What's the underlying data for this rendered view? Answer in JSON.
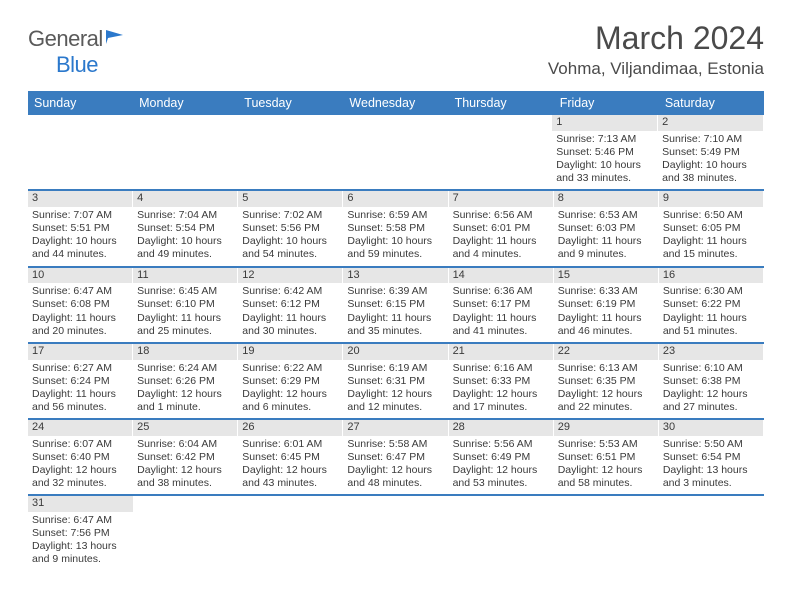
{
  "logo": {
    "text1": "General",
    "text2": "Blue",
    "color1": "#5a5a5a",
    "color2": "#2b78cc"
  },
  "title": "March 2024",
  "location": "Vohma, Viljandimaa, Estonia",
  "colors": {
    "header_bg": "#3a7cbf",
    "header_text": "#ffffff",
    "daynum_bg": "#e6e6e6",
    "week_border": "#3a7cbf",
    "text": "#3a3a3a"
  },
  "fonts": {
    "title_size": 32,
    "location_size": 17,
    "dayheader_size": 12.5,
    "cell_size": 10.5
  },
  "dayheaders": [
    "Sunday",
    "Monday",
    "Tuesday",
    "Wednesday",
    "Thursday",
    "Friday",
    "Saturday"
  ],
  "weeks": [
    [
      null,
      null,
      null,
      null,
      null,
      {
        "n": "1",
        "sunrise": "Sunrise: 7:13 AM",
        "sunset": "Sunset: 5:46 PM",
        "daylight": "Daylight: 10 hours and 33 minutes."
      },
      {
        "n": "2",
        "sunrise": "Sunrise: 7:10 AM",
        "sunset": "Sunset: 5:49 PM",
        "daylight": "Daylight: 10 hours and 38 minutes."
      }
    ],
    [
      {
        "n": "3",
        "sunrise": "Sunrise: 7:07 AM",
        "sunset": "Sunset: 5:51 PM",
        "daylight": "Daylight: 10 hours and 44 minutes."
      },
      {
        "n": "4",
        "sunrise": "Sunrise: 7:04 AM",
        "sunset": "Sunset: 5:54 PM",
        "daylight": "Daylight: 10 hours and 49 minutes."
      },
      {
        "n": "5",
        "sunrise": "Sunrise: 7:02 AM",
        "sunset": "Sunset: 5:56 PM",
        "daylight": "Daylight: 10 hours and 54 minutes."
      },
      {
        "n": "6",
        "sunrise": "Sunrise: 6:59 AM",
        "sunset": "Sunset: 5:58 PM",
        "daylight": "Daylight: 10 hours and 59 minutes."
      },
      {
        "n": "7",
        "sunrise": "Sunrise: 6:56 AM",
        "sunset": "Sunset: 6:01 PM",
        "daylight": "Daylight: 11 hours and 4 minutes."
      },
      {
        "n": "8",
        "sunrise": "Sunrise: 6:53 AM",
        "sunset": "Sunset: 6:03 PM",
        "daylight": "Daylight: 11 hours and 9 minutes."
      },
      {
        "n": "9",
        "sunrise": "Sunrise: 6:50 AM",
        "sunset": "Sunset: 6:05 PM",
        "daylight": "Daylight: 11 hours and 15 minutes."
      }
    ],
    [
      {
        "n": "10",
        "sunrise": "Sunrise: 6:47 AM",
        "sunset": "Sunset: 6:08 PM",
        "daylight": "Daylight: 11 hours and 20 minutes."
      },
      {
        "n": "11",
        "sunrise": "Sunrise: 6:45 AM",
        "sunset": "Sunset: 6:10 PM",
        "daylight": "Daylight: 11 hours and 25 minutes."
      },
      {
        "n": "12",
        "sunrise": "Sunrise: 6:42 AM",
        "sunset": "Sunset: 6:12 PM",
        "daylight": "Daylight: 11 hours and 30 minutes."
      },
      {
        "n": "13",
        "sunrise": "Sunrise: 6:39 AM",
        "sunset": "Sunset: 6:15 PM",
        "daylight": "Daylight: 11 hours and 35 minutes."
      },
      {
        "n": "14",
        "sunrise": "Sunrise: 6:36 AM",
        "sunset": "Sunset: 6:17 PM",
        "daylight": "Daylight: 11 hours and 41 minutes."
      },
      {
        "n": "15",
        "sunrise": "Sunrise: 6:33 AM",
        "sunset": "Sunset: 6:19 PM",
        "daylight": "Daylight: 11 hours and 46 minutes."
      },
      {
        "n": "16",
        "sunrise": "Sunrise: 6:30 AM",
        "sunset": "Sunset: 6:22 PM",
        "daylight": "Daylight: 11 hours and 51 minutes."
      }
    ],
    [
      {
        "n": "17",
        "sunrise": "Sunrise: 6:27 AM",
        "sunset": "Sunset: 6:24 PM",
        "daylight": "Daylight: 11 hours and 56 minutes."
      },
      {
        "n": "18",
        "sunrise": "Sunrise: 6:24 AM",
        "sunset": "Sunset: 6:26 PM",
        "daylight": "Daylight: 12 hours and 1 minute."
      },
      {
        "n": "19",
        "sunrise": "Sunrise: 6:22 AM",
        "sunset": "Sunset: 6:29 PM",
        "daylight": "Daylight: 12 hours and 6 minutes."
      },
      {
        "n": "20",
        "sunrise": "Sunrise: 6:19 AM",
        "sunset": "Sunset: 6:31 PM",
        "daylight": "Daylight: 12 hours and 12 minutes."
      },
      {
        "n": "21",
        "sunrise": "Sunrise: 6:16 AM",
        "sunset": "Sunset: 6:33 PM",
        "daylight": "Daylight: 12 hours and 17 minutes."
      },
      {
        "n": "22",
        "sunrise": "Sunrise: 6:13 AM",
        "sunset": "Sunset: 6:35 PM",
        "daylight": "Daylight: 12 hours and 22 minutes."
      },
      {
        "n": "23",
        "sunrise": "Sunrise: 6:10 AM",
        "sunset": "Sunset: 6:38 PM",
        "daylight": "Daylight: 12 hours and 27 minutes."
      }
    ],
    [
      {
        "n": "24",
        "sunrise": "Sunrise: 6:07 AM",
        "sunset": "Sunset: 6:40 PM",
        "daylight": "Daylight: 12 hours and 32 minutes."
      },
      {
        "n": "25",
        "sunrise": "Sunrise: 6:04 AM",
        "sunset": "Sunset: 6:42 PM",
        "daylight": "Daylight: 12 hours and 38 minutes."
      },
      {
        "n": "26",
        "sunrise": "Sunrise: 6:01 AM",
        "sunset": "Sunset: 6:45 PM",
        "daylight": "Daylight: 12 hours and 43 minutes."
      },
      {
        "n": "27",
        "sunrise": "Sunrise: 5:58 AM",
        "sunset": "Sunset: 6:47 PM",
        "daylight": "Daylight: 12 hours and 48 minutes."
      },
      {
        "n": "28",
        "sunrise": "Sunrise: 5:56 AM",
        "sunset": "Sunset: 6:49 PM",
        "daylight": "Daylight: 12 hours and 53 minutes."
      },
      {
        "n": "29",
        "sunrise": "Sunrise: 5:53 AM",
        "sunset": "Sunset: 6:51 PM",
        "daylight": "Daylight: 12 hours and 58 minutes."
      },
      {
        "n": "30",
        "sunrise": "Sunrise: 5:50 AM",
        "sunset": "Sunset: 6:54 PM",
        "daylight": "Daylight: 13 hours and 3 minutes."
      }
    ],
    [
      {
        "n": "31",
        "sunrise": "Sunrise: 6:47 AM",
        "sunset": "Sunset: 7:56 PM",
        "daylight": "Daylight: 13 hours and 9 minutes."
      },
      null,
      null,
      null,
      null,
      null,
      null
    ]
  ]
}
